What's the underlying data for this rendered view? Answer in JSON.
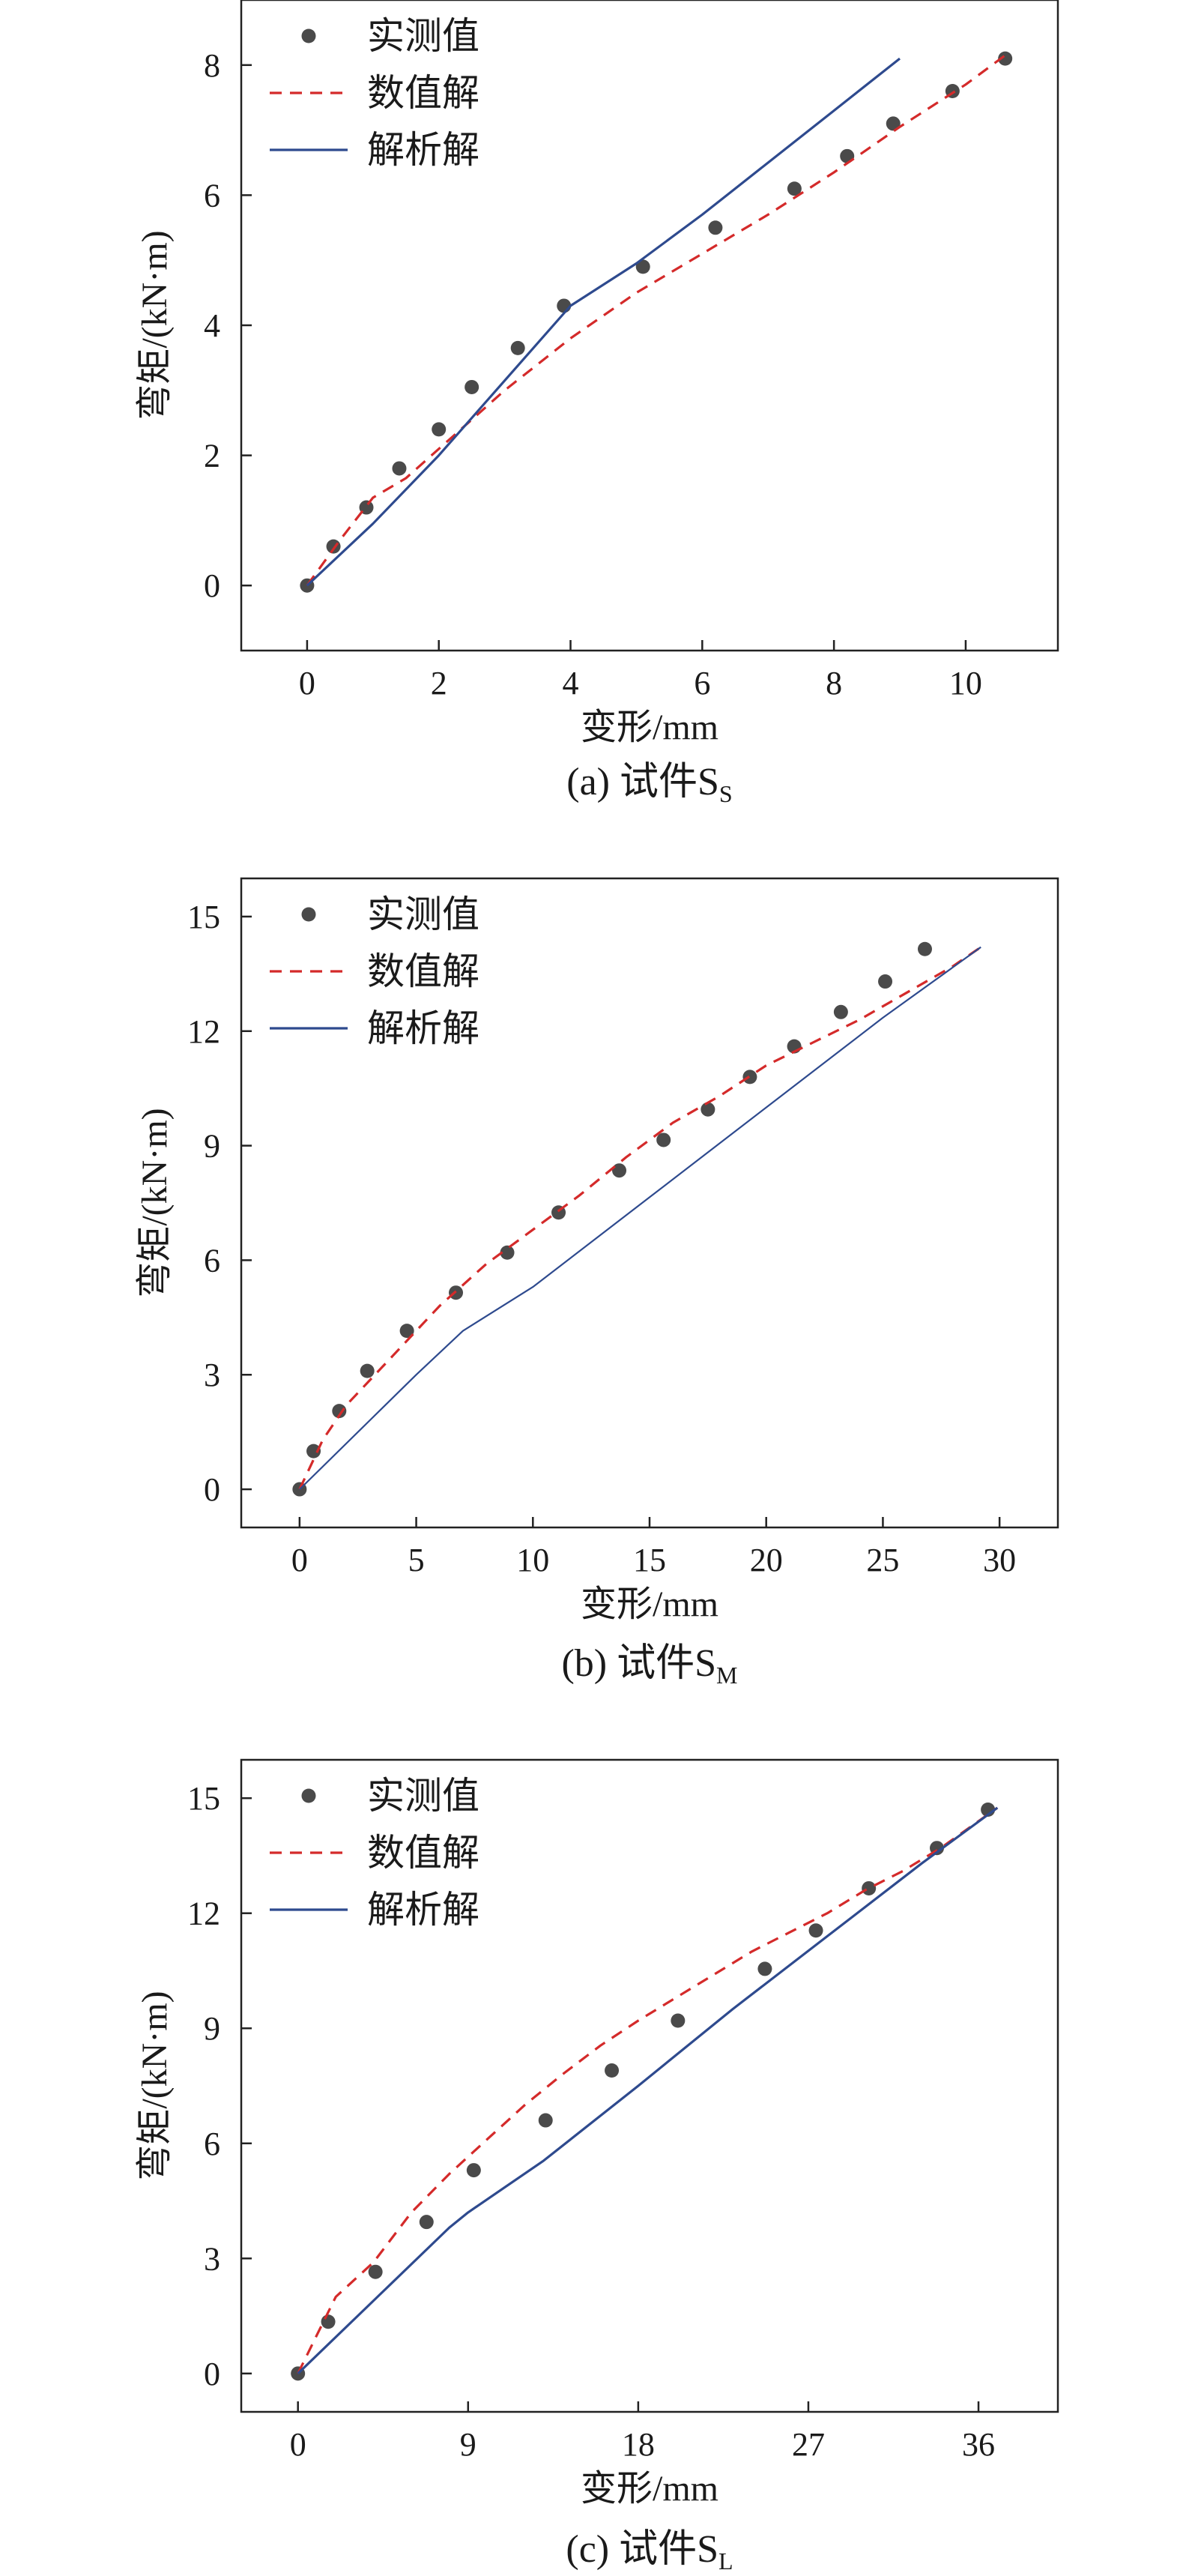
{
  "chart_data": [
    {
      "type": "line",
      "caption": "(a) 试件S",
      "caption_sub": "S",
      "xlabel": "变形/mm",
      "ylabel": "弯矩/(kN·m)",
      "xlim": [
        -1,
        11.4
      ],
      "ylim": [
        -1,
        9
      ],
      "xticks": [
        0,
        2,
        4,
        6,
        8,
        10
      ],
      "yticks": [
        0,
        2,
        4,
        6,
        8
      ],
      "legend_position": "top-left",
      "series": [
        {
          "name": "实测值",
          "style": "scatter",
          "color": "#4a4a4a",
          "x": [
            0,
            0.4,
            0.9,
            1.4,
            2.0,
            2.5,
            3.2,
            3.9,
            5.1,
            6.2,
            7.4,
            8.2,
            8.9,
            9.8,
            10.6
          ],
          "y": [
            0,
            0.6,
            1.2,
            1.8,
            2.4,
            3.05,
            3.65,
            4.3,
            4.9,
            5.5,
            6.1,
            6.6,
            7.1,
            7.6,
            8.1
          ]
        },
        {
          "name": "数值解",
          "style": "dashed",
          "color": "#d42a2a",
          "x": [
            0,
            0.5,
            1.0,
            1.5,
            2.0,
            2.5,
            3.0,
            3.5,
            4.0,
            5.0,
            6.0,
            7.0,
            8.0,
            9.0,
            10.0,
            10.6
          ],
          "y": [
            0,
            0.7,
            1.35,
            1.65,
            2.1,
            2.55,
            3.0,
            3.4,
            3.8,
            4.5,
            5.1,
            5.7,
            6.35,
            7.05,
            7.7,
            8.15
          ]
        },
        {
          "name": "解析解",
          "style": "solid",
          "color": "#2e4a8e",
          "x": [
            0,
            1.0,
            2.0,
            3.0,
            4.0,
            5.0,
            6.0,
            7.0,
            8.0,
            9.0
          ],
          "y": [
            0,
            0.95,
            2.0,
            3.15,
            4.3,
            4.95,
            5.7,
            6.5,
            7.3,
            8.1
          ]
        }
      ]
    },
    {
      "type": "line",
      "caption": "(b) 试件S",
      "caption_sub": "M",
      "xlabel": "变形/mm",
      "ylabel": "弯矩/(kN·m)",
      "xlim": [
        -2.5,
        32.5
      ],
      "ylim": [
        -1,
        16
      ],
      "xticks": [
        0,
        5,
        10,
        15,
        20,
        25,
        30
      ],
      "yticks": [
        0,
        3,
        6,
        9,
        12,
        15
      ],
      "legend_position": "top-left",
      "series": [
        {
          "name": "实测值",
          "style": "scatter",
          "color": "#4a4a4a",
          "x": [
            0,
            0.6,
            1.7,
            2.9,
            4.6,
            6.7,
            8.9,
            11.1,
            13.7,
            15.6,
            17.5,
            19.3,
            21.2,
            23.2,
            25.1,
            26.8
          ],
          "y": [
            0,
            1.0,
            2.05,
            3.1,
            4.15,
            5.15,
            6.2,
            7.25,
            8.35,
            9.15,
            9.95,
            10.8,
            11.6,
            12.5,
            13.3,
            14.15
          ]
        },
        {
          "name": "数值解",
          "style": "dashed",
          "color": "#d42a2a",
          "x": [
            0,
            1.0,
            2.0,
            4.0,
            6.0,
            8.0,
            10.0,
            12.0,
            14.0,
            16.0,
            18.0,
            20.0,
            22.0,
            24.0,
            26.0,
            28.0,
            29.2
          ],
          "y": [
            0,
            1.3,
            2.2,
            3.5,
            4.8,
            5.9,
            6.8,
            7.7,
            8.7,
            9.6,
            10.3,
            11.1,
            11.7,
            12.3,
            13.0,
            13.7,
            14.2
          ]
        },
        {
          "name": "解析解",
          "style": "solid",
          "color": "#2e4a8e",
          "x": [
            0,
            3.0,
            5.0,
            7.0,
            10.0,
            15.0,
            20.0,
            25.0,
            29.2
          ],
          "y": [
            0,
            1.8,
            3.0,
            4.15,
            5.3,
            7.65,
            10.0,
            12.35,
            14.2
          ]
        }
      ]
    },
    {
      "type": "line",
      "caption": "(c) 试件S",
      "caption_sub": "L",
      "xlabel": "变形/mm",
      "ylabel": "弯矩/(kN·m)",
      "xlim": [
        -3,
        40.2
      ],
      "ylim": [
        -1,
        16
      ],
      "xticks": [
        0,
        9,
        18,
        27,
        36
      ],
      "yticks": [
        0,
        3,
        6,
        9,
        12,
        15
      ],
      "legend_position": "top-left",
      "series": [
        {
          "name": "实测值",
          "style": "scatter",
          "color": "#4a4a4a",
          "x": [
            0,
            1.6,
            4.1,
            6.8,
            9.3,
            13.1,
            16.6,
            20.1,
            24.7,
            27.4,
            30.2,
            33.8,
            36.5
          ],
          "y": [
            0,
            1.35,
            2.65,
            3.95,
            5.3,
            6.6,
            7.9,
            9.2,
            10.55,
            11.55,
            12.65,
            13.7,
            14.7
          ]
        },
        {
          "name": "数值解",
          "style": "dashed",
          "color": "#d42a2a",
          "x": [
            0,
            1.0,
            2.0,
            4.0,
            6.0,
            8.0,
            10.0,
            12.0,
            14.0,
            16.0,
            18.0,
            20.0,
            22.0,
            24.0,
            26.0,
            28.0,
            30.0,
            32.0,
            34.0,
            36.0,
            37.0
          ],
          "y": [
            0,
            1.0,
            2.0,
            2.9,
            4.2,
            5.2,
            6.1,
            7.0,
            7.8,
            8.55,
            9.2,
            9.8,
            10.4,
            11.0,
            11.5,
            12.0,
            12.6,
            13.1,
            13.7,
            14.4,
            14.75
          ]
        },
        {
          "name": "解析解",
          "style": "solid",
          "color": "#2e4a8e",
          "x": [
            0,
            4.0,
            8.0,
            9.0,
            13.0,
            18.0,
            23.0,
            28.0,
            33.0,
            37.0
          ],
          "y": [
            0,
            1.9,
            3.8,
            4.2,
            5.55,
            7.5,
            9.5,
            11.4,
            13.3,
            14.75
          ]
        }
      ]
    }
  ]
}
